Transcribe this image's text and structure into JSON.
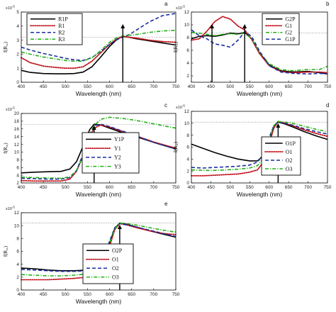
{
  "figure": {
    "exponent_label": "x10",
    "exponent_power": "-5"
  },
  "chart_data": [
    {
      "type": "line",
      "panel_letter": "a",
      "xlabel": "Wavelength (nm)",
      "ylabel": "f(R",
      "ylabel_sub": "∞",
      "ylabel_close": ")",
      "xlim": [
        400,
        750
      ],
      "ylim": [
        0,
        5
      ],
      "xticks": [
        400,
        450,
        500,
        550,
        600,
        650,
        700,
        750
      ],
      "yticks": [
        0,
        1,
        2,
        3,
        4,
        5
      ],
      "grid_y": [
        3.2
      ],
      "arrows_x": [
        630
      ],
      "legend_position": "top-left",
      "series": [
        {
          "name": "R1P",
          "color": "#000000",
          "dash": "solid",
          "x": [
            400,
            420,
            450,
            480,
            500,
            520,
            540,
            560,
            580,
            600,
            615,
            625,
            632,
            645,
            660,
            690,
            720,
            750
          ],
          "y": [
            0.85,
            0.7,
            0.62,
            0.6,
            0.6,
            0.62,
            0.72,
            1.1,
            1.8,
            2.55,
            3.0,
            3.2,
            3.25,
            3.2,
            3.1,
            2.95,
            2.8,
            2.65
          ]
        },
        {
          "name": "R1",
          "color": "#c0101a",
          "dash": "dot",
          "x": [
            400,
            420,
            450,
            480,
            500,
            520,
            540,
            560,
            580,
            600,
            615,
            625,
            632,
            645,
            660,
            690,
            720,
            750
          ],
          "y": [
            1.75,
            1.4,
            1.15,
            1.05,
            1.0,
            1.0,
            1.1,
            1.5,
            2.1,
            2.7,
            3.05,
            3.2,
            3.25,
            3.2,
            3.15,
            3.0,
            2.9,
            2.85
          ]
        },
        {
          "name": "R2",
          "color": "#1a2fa0",
          "dash": "dash",
          "x": [
            400,
            420,
            450,
            480,
            500,
            520,
            540,
            560,
            580,
            600,
            615,
            625,
            632,
            645,
            660,
            690,
            720,
            750
          ],
          "y": [
            2.5,
            2.3,
            2.05,
            1.85,
            1.7,
            1.6,
            1.55,
            1.75,
            2.2,
            2.7,
            3.0,
            3.15,
            3.25,
            3.4,
            3.7,
            4.3,
            4.75,
            4.9
          ]
        },
        {
          "name": "R3",
          "color": "#22b014",
          "dash": "dashdot",
          "x": [
            400,
            420,
            450,
            480,
            500,
            520,
            540,
            560,
            580,
            600,
            615,
            625,
            632,
            645,
            660,
            690,
            720,
            750
          ],
          "y": [
            2.15,
            2.0,
            1.8,
            1.65,
            1.55,
            1.5,
            1.5,
            1.75,
            2.25,
            2.85,
            3.15,
            3.25,
            3.3,
            3.35,
            3.4,
            3.55,
            3.65,
            3.7
          ]
        }
      ]
    },
    {
      "type": "line",
      "panel_letter": "b",
      "xlabel": "Wavelength (nm)",
      "ylabel": "f(R",
      "ylabel_sub": "∞",
      "ylabel_close": ")",
      "xlim": [
        400,
        750
      ],
      "ylim": [
        1,
        12
      ],
      "xticks": [
        400,
        450,
        500,
        550,
        600,
        650,
        700,
        750
      ],
      "yticks": [
        2,
        4,
        6,
        8,
        10,
        12
      ],
      "grid_y": [
        8.7
      ],
      "arrows_x": [
        453,
        537
      ],
      "legend_position": "top-right",
      "series": [
        {
          "name": "G2P",
          "color": "#000000",
          "dash": "solid",
          "x": [
            400,
            420,
            440,
            460,
            480,
            500,
            520,
            537,
            555,
            575,
            600,
            630,
            660,
            700,
            730,
            750
          ],
          "y": [
            7.8,
            8.2,
            8.3,
            8.2,
            8.4,
            8.7,
            8.6,
            8.8,
            7.8,
            5.6,
            3.7,
            2.8,
            2.6,
            2.7,
            2.5,
            2.3
          ]
        },
        {
          "name": "G1",
          "color": "#c0101a",
          "dash": "dot",
          "x": [
            400,
            420,
            440,
            460,
            480,
            500,
            520,
            537,
            555,
            575,
            600,
            630,
            660,
            700,
            730,
            750
          ],
          "y": [
            7.6,
            7.8,
            9.0,
            10.5,
            11.3,
            10.9,
            9.8,
            9.2,
            7.7,
            5.5,
            3.6,
            2.7,
            2.5,
            2.6,
            2.6,
            2.5
          ]
        },
        {
          "name": "G2",
          "color": "#22b014",
          "dash": "dashdot",
          "x": [
            400,
            420,
            440,
            460,
            480,
            500,
            520,
            537,
            555,
            575,
            600,
            630,
            660,
            700,
            730,
            750
          ],
          "y": [
            8.8,
            8.7,
            8.5,
            8.3,
            8.5,
            8.6,
            8.5,
            8.7,
            7.8,
            5.7,
            3.9,
            3.0,
            2.8,
            3.0,
            3.0,
            3.5
          ]
        },
        {
          "name": "G1P",
          "color": "#1a2fa0",
          "dash": "dash",
          "x": [
            400,
            420,
            440,
            460,
            480,
            500,
            520,
            537,
            555,
            575,
            600,
            630,
            660,
            700,
            730,
            750
          ],
          "y": [
            9.2,
            8.3,
            7.8,
            7.0,
            6.8,
            6.5,
            7.6,
            8.9,
            8.2,
            5.9,
            3.6,
            2.6,
            2.4,
            2.3,
            2.4,
            2.3
          ]
        }
      ]
    },
    {
      "type": "line",
      "panel_letter": "c",
      "xlabel": "Wavelength (nm)",
      "ylabel": "f(R",
      "ylabel_sub": "∞",
      "ylabel_close": ")",
      "xlim": [
        400,
        750
      ],
      "ylim": [
        2,
        20
      ],
      "xticks": [
        400,
        450,
        500,
        550,
        600,
        650,
        700,
        750
      ],
      "yticks": [
        2,
        4,
        6,
        8,
        10,
        12,
        14,
        16,
        18,
        20
      ],
      "grid_y": [
        17.2
      ],
      "arrows_x": [
        565
      ],
      "legend_position": "bottom-right",
      "series": [
        {
          "name": "Y1P",
          "color": "#000000",
          "dash": "solid",
          "x": [
            400,
            430,
            460,
            490,
            510,
            525,
            540,
            555,
            565,
            580,
            600,
            630,
            660,
            700,
            750
          ],
          "y": [
            4.6,
            4.8,
            4.9,
            5.0,
            5.6,
            7.5,
            11.5,
            15.8,
            17.2,
            17.0,
            16.2,
            15.0,
            14.0,
            12.5,
            10.8
          ]
        },
        {
          "name": "Y1",
          "color": "#c0101a",
          "dash": "dot",
          "x": [
            400,
            430,
            460,
            490,
            510,
            525,
            540,
            555,
            565,
            580,
            600,
            630,
            660,
            700,
            750
          ],
          "y": [
            2.6,
            2.5,
            2.5,
            2.5,
            3.0,
            5.0,
            9.0,
            13.8,
            16.2,
            17.0,
            16.5,
            15.3,
            14.2,
            12.6,
            11.0
          ]
        },
        {
          "name": "Y2",
          "color": "#1a2fa0",
          "dash": "dash",
          "x": [
            400,
            430,
            460,
            490,
            510,
            525,
            540,
            555,
            565,
            580,
            600,
            630,
            660,
            700,
            750
          ],
          "y": [
            3.2,
            3.1,
            3.0,
            3.0,
            3.4,
            5.2,
            9.5,
            14.5,
            16.8,
            17.2,
            16.6,
            15.4,
            14.2,
            12.5,
            10.8
          ]
        },
        {
          "name": "Y3",
          "color": "#22b014",
          "dash": "dashdot",
          "x": [
            400,
            430,
            460,
            490,
            510,
            525,
            540,
            555,
            565,
            580,
            600,
            630,
            660,
            700,
            750
          ],
          "y": [
            3.5,
            3.4,
            3.3,
            3.2,
            3.6,
            5.2,
            9.0,
            14.0,
            16.8,
            18.5,
            19.0,
            18.7,
            18.2,
            17.3,
            16.2
          ]
        }
      ]
    },
    {
      "type": "line",
      "panel_letter": "d",
      "xlabel": "Wavelength (nm)",
      "ylabel": "f(R",
      "ylabel_sub": "∞",
      "ylabel_close": ")",
      "xlim": [
        400,
        750
      ],
      "ylim": [
        0,
        12
      ],
      "xticks": [
        400,
        450,
        500,
        550,
        600,
        650,
        700,
        750
      ],
      "yticks": [
        0,
        2,
        4,
        6,
        8,
        10,
        12
      ],
      "grid_y": [
        10.2
      ],
      "arrows_x": [
        623
      ],
      "legend_position": "bottom-right",
      "series": [
        {
          "name": "O1P",
          "color": "#000000",
          "dash": "solid",
          "x": [
            400,
            430,
            460,
            490,
            520,
            550,
            570,
            585,
            600,
            612,
            623,
            640,
            660,
            690,
            720,
            750
          ],
          "y": [
            6.5,
            5.8,
            5.1,
            4.5,
            4.0,
            3.7,
            3.7,
            4.6,
            7.0,
            9.4,
            10.2,
            9.9,
            9.4,
            8.6,
            7.9,
            7.3
          ]
        },
        {
          "name": "O1",
          "color": "#c0101a",
          "dash": "dot",
          "x": [
            400,
            430,
            460,
            490,
            520,
            550,
            570,
            585,
            600,
            612,
            623,
            640,
            660,
            690,
            720,
            750
          ],
          "y": [
            1.2,
            1.2,
            1.3,
            1.4,
            1.5,
            1.8,
            2.2,
            3.5,
            6.5,
            9.2,
            10.3,
            10.0,
            9.6,
            8.9,
            8.3,
            7.8
          ]
        },
        {
          "name": "O2",
          "color": "#1a2fa0",
          "dash": "dash",
          "x": [
            400,
            430,
            460,
            490,
            520,
            550,
            570,
            585,
            600,
            612,
            623,
            640,
            660,
            690,
            720,
            750
          ],
          "y": [
            2.6,
            2.5,
            2.6,
            2.7,
            2.8,
            3.0,
            3.5,
            4.8,
            7.6,
            9.6,
            10.2,
            10.0,
            9.7,
            9.1,
            8.6,
            8.2
          ]
        },
        {
          "name": "O3",
          "color": "#22b014",
          "dash": "dashdot",
          "x": [
            400,
            430,
            460,
            490,
            520,
            550,
            570,
            585,
            600,
            612,
            623,
            640,
            660,
            690,
            720,
            750
          ],
          "y": [
            2.2,
            2.1,
            2.1,
            2.2,
            2.3,
            2.5,
            2.9,
            4.2,
            7.2,
            9.6,
            10.3,
            10.2,
            10.0,
            9.5,
            9.0,
            8.6
          ]
        }
      ]
    },
    {
      "type": "line",
      "panel_letter": "e",
      "xlabel": "Wavelength (nm)",
      "ylabel": "f(R",
      "ylabel_sub": "∞",
      "ylabel_close": ")",
      "xlim": [
        400,
        750
      ],
      "ylim": [
        0,
        12
      ],
      "xticks": [
        400,
        450,
        500,
        550,
        600,
        650,
        700,
        750
      ],
      "yticks": [
        0,
        2,
        4,
        6,
        8,
        10,
        12
      ],
      "grid_y": [
        10.4
      ],
      "arrows_x": [
        623
      ],
      "legend_position": "bottom-right",
      "series": [
        {
          "name": "O2P",
          "color": "#000000",
          "dash": "solid",
          "x": [
            400,
            430,
            460,
            490,
            520,
            550,
            570,
            585,
            600,
            612,
            623,
            640,
            660,
            690,
            720,
            750
          ],
          "y": [
            3.4,
            3.3,
            3.1,
            3.0,
            3.0,
            3.1,
            3.4,
            4.5,
            7.3,
            9.6,
            10.4,
            10.2,
            9.8,
            9.2,
            8.7,
            8.2
          ]
        },
        {
          "name": "O1",
          "color": "#c0101a",
          "dash": "dot",
          "x": [
            400,
            430,
            460,
            490,
            520,
            550,
            570,
            585,
            600,
            612,
            623,
            640,
            660,
            690,
            720,
            750
          ],
          "y": [
            1.6,
            1.6,
            1.6,
            1.7,
            1.8,
            2.0,
            2.4,
            3.6,
            6.8,
            9.4,
            10.3,
            10.1,
            9.7,
            9.2,
            8.8,
            8.6
          ]
        },
        {
          "name": "O2",
          "color": "#1a2fa0",
          "dash": "dash",
          "x": [
            400,
            430,
            460,
            490,
            520,
            550,
            570,
            585,
            600,
            612,
            623,
            640,
            660,
            690,
            720,
            750
          ],
          "y": [
            3.2,
            3.1,
            3.0,
            2.9,
            2.9,
            3.0,
            3.4,
            4.7,
            7.6,
            9.7,
            10.3,
            10.1,
            9.8,
            9.3,
            8.8,
            8.3
          ]
        },
        {
          "name": "O3",
          "color": "#22b014",
          "dash": "dashdot",
          "x": [
            400,
            430,
            460,
            490,
            520,
            550,
            570,
            585,
            600,
            612,
            623,
            640,
            660,
            690,
            720,
            750
          ],
          "y": [
            2.4,
            2.3,
            2.2,
            2.2,
            2.3,
            2.5,
            2.9,
            4.2,
            7.2,
            9.5,
            10.4,
            10.3,
            10.1,
            9.7,
            9.3,
            9.0
          ]
        }
      ]
    }
  ]
}
